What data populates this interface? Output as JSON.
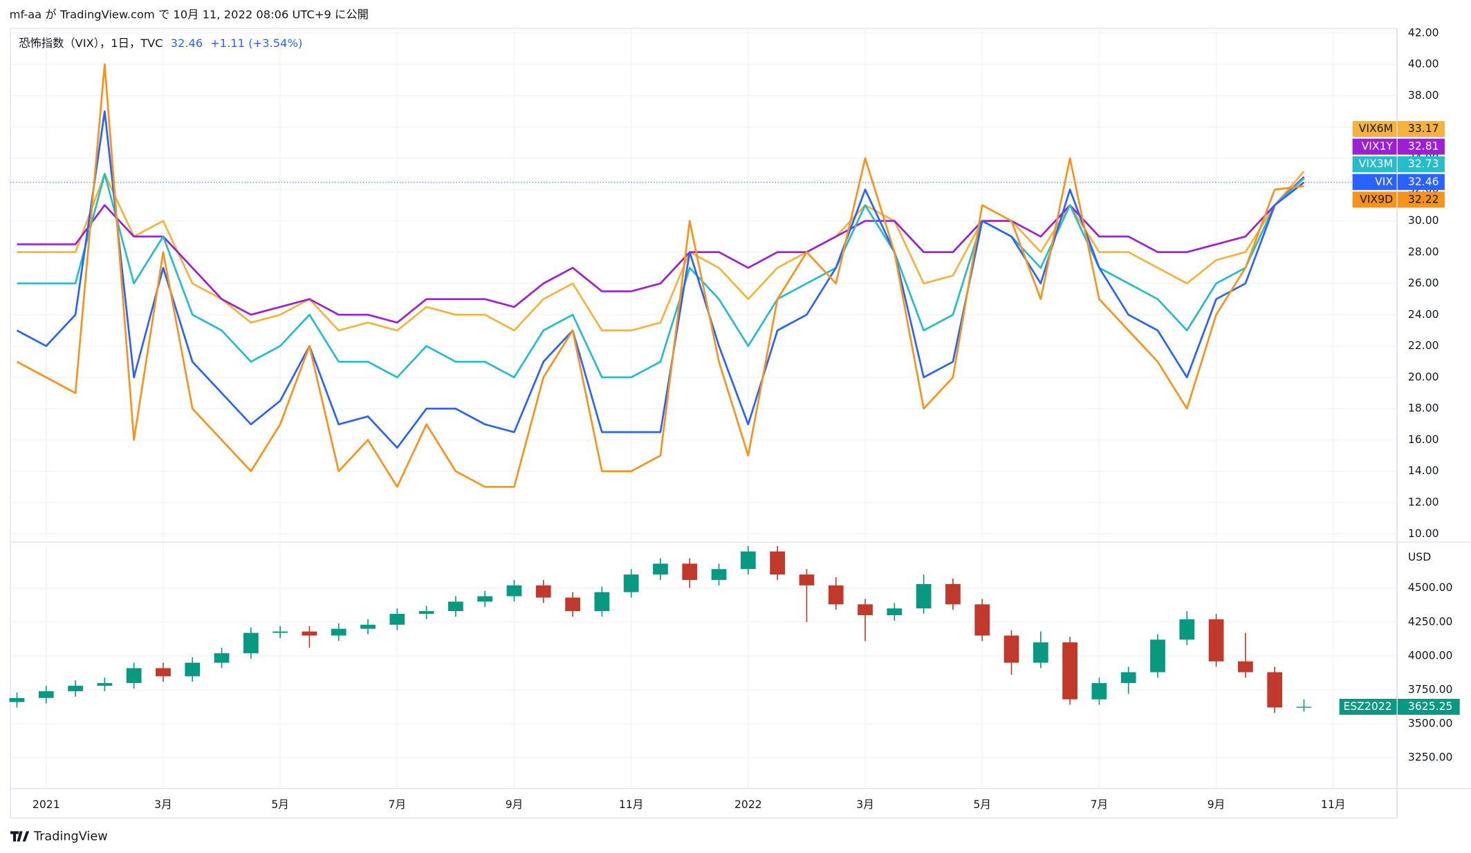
{
  "header": "mf-aa が TradingView.com で 10月 11, 2022 08:06 UTC+9 に公開",
  "footer": "TradingView",
  "chart_data": [
    {
      "type": "line",
      "title": "恐怖指数（VIX），1日，TVC",
      "change": "+1.11 (+3.54%)",
      "categories": [
        null,
        "2021",
        null,
        null,
        null,
        "3月",
        null,
        null,
        null,
        "5月",
        null,
        null,
        null,
        "7月",
        null,
        null,
        null,
        "9月",
        null,
        null,
        null,
        "11月",
        null,
        null,
        null,
        "2022",
        null,
        null,
        null,
        "3月",
        null,
        null,
        null,
        "5月",
        null,
        null,
        null,
        "7月",
        null,
        null,
        null,
        "9月",
        null,
        null,
        null,
        "11月",
        null
      ],
      "series": [
        {
          "name": "VIX6M",
          "color": "#f5b23c",
          "values": [
            28,
            28,
            28,
            33,
            29,
            30,
            26,
            25,
            23.5,
            24,
            25,
            23,
            23.5,
            23,
            24.5,
            24,
            24,
            23,
            25,
            26,
            23,
            23,
            23.5,
            28,
            27,
            25,
            27,
            28,
            29,
            31,
            30,
            26,
            26.5,
            30,
            30,
            28,
            31,
            28,
            28,
            27,
            26,
            27.5,
            28,
            31,
            33.17,
            null,
            null
          ]
        },
        {
          "name": "VIX1Y",
          "color": "#9c1fd6",
          "values": [
            28.5,
            28.5,
            28.5,
            31,
            29,
            29,
            27,
            25,
            24,
            24.5,
            25,
            24,
            24,
            23.5,
            25,
            25,
            25,
            24.5,
            26,
            27,
            25.5,
            25.5,
            26,
            28,
            28,
            27,
            28,
            28,
            29,
            30,
            30,
            28,
            28,
            30,
            30,
            29,
            31,
            29,
            29,
            28,
            28,
            28.5,
            29,
            31,
            32.81,
            null,
            null
          ]
        },
        {
          "name": "VIX3M",
          "color": "#26bcc9",
          "values": [
            26,
            26,
            26,
            33,
            26,
            29,
            24,
            23,
            21,
            22,
            24,
            21,
            21,
            20,
            22,
            21,
            21,
            20,
            23,
            24,
            20,
            20,
            21,
            27,
            25,
            22,
            25,
            26,
            27,
            31,
            28,
            23,
            24,
            30,
            29,
            27,
            31,
            27,
            26,
            25,
            23,
            26,
            27,
            31,
            32.73,
            null,
            null
          ]
        },
        {
          "name": "VIX",
          "color": "#2962ff",
          "values": [
            23,
            22,
            24,
            37,
            20,
            27,
            21,
            19,
            17,
            18.5,
            22,
            17,
            17.5,
            15.5,
            18,
            18,
            17,
            16.5,
            21,
            23,
            16.5,
            16.5,
            16.5,
            28,
            22,
            17,
            23,
            24,
            27,
            32,
            28,
            20,
            21,
            30,
            29,
            26,
            32,
            27,
            24,
            23,
            20,
            25,
            26,
            31,
            32.46,
            null,
            null
          ]
        },
        {
          "name": "VIX9D",
          "color": "#f7931a",
          "values": [
            21,
            20,
            19,
            40,
            16,
            28,
            18,
            16,
            14,
            17,
            22,
            14,
            16,
            13,
            17,
            14,
            13,
            13,
            20,
            23,
            14,
            14,
            15,
            30,
            21,
            15,
            25,
            28,
            26,
            34,
            28,
            18,
            20,
            31,
            30,
            25,
            34,
            25,
            23,
            21,
            18,
            24,
            27,
            32,
            32.22,
            null,
            null
          ]
        }
      ],
      "ylim": [
        9.5,
        42.3
      ],
      "yticks": [
        {
          "value": 10,
          "label": "10.00"
        },
        {
          "value": 12,
          "label": "12.00"
        },
        {
          "value": 14,
          "label": "14.00"
        },
        {
          "value": 16,
          "label": "16.00"
        },
        {
          "value": 18,
          "label": "18.00"
        },
        {
          "value": 20,
          "label": "20.00"
        },
        {
          "value": 22,
          "label": "22.00"
        },
        {
          "value": 24,
          "label": "24.00"
        },
        {
          "value": 26,
          "label": "26.00"
        },
        {
          "value": 28,
          "label": "28.00"
        },
        {
          "value": 30,
          "label": "30.00"
        },
        {
          "value": 32,
          "label": "32.00"
        },
        {
          "value": 34,
          "label": "34.00"
        },
        {
          "value": 36,
          "label": "36.00"
        },
        {
          "value": 38,
          "label": "38.00"
        },
        {
          "value": 40,
          "label": "40.00"
        },
        {
          "value": 42,
          "label": "42.00"
        }
      ],
      "grid": true
    },
    {
      "type": "candlestick",
      "name": "ESZ2022",
      "unit": "USD",
      "up_color": "#089981",
      "down_color": "#c0392b",
      "open": [
        3660,
        3690,
        3740,
        3780,
        3800,
        3910,
        3850,
        3950,
        4020,
        4170,
        4180,
        4150,
        4200,
        4230,
        4310,
        4330,
        4400,
        4440,
        4520,
        4430,
        4330,
        4470,
        4600,
        4680,
        4560,
        4640,
        4770,
        4600,
        4520,
        4380,
        4300,
        4350,
        4530,
        4380,
        4150,
        3950,
        4100,
        3680,
        3800,
        3880,
        4120,
        4270,
        3960,
        3880,
        3620,
        null,
        null
      ],
      "high": [
        3730,
        3780,
        3820,
        3840,
        3950,
        3950,
        3990,
        4060,
        4210,
        4220,
        4220,
        4240,
        4270,
        4350,
        4370,
        4440,
        4480,
        4560,
        4560,
        4470,
        4510,
        4640,
        4720,
        4720,
        4680,
        4810,
        4810,
        4640,
        4580,
        4420,
        4390,
        4600,
        4570,
        4420,
        4190,
        4180,
        4140,
        3840,
        3920,
        4160,
        4330,
        4310,
        4170,
        3920,
        3680,
        null,
        null
      ],
      "low": [
        3620,
        3650,
        3700,
        3740,
        3760,
        3810,
        3810,
        3910,
        3980,
        4130,
        4060,
        4110,
        4160,
        4190,
        4270,
        4290,
        4360,
        4400,
        4390,
        4290,
        4290,
        4430,
        4560,
        4500,
        4520,
        4600,
        4560,
        4250,
        4340,
        4110,
        4260,
        4310,
        4340,
        4110,
        3860,
        3910,
        3640,
        3640,
        3720,
        3840,
        4080,
        3920,
        3840,
        3580,
        3590,
        null,
        null
      ],
      "close": [
        3690,
        3740,
        3780,
        3800,
        3910,
        3850,
        3950,
        4020,
        4170,
        4180,
        4150,
        4200,
        4230,
        4310,
        4330,
        4400,
        4440,
        4520,
        4430,
        4330,
        4470,
        4600,
        4680,
        4560,
        4640,
        4770,
        4600,
        4520,
        4380,
        4300,
        4350,
        4530,
        4380,
        4150,
        3950,
        4100,
        3680,
        3800,
        3880,
        4120,
        4270,
        3960,
        3880,
        3620,
        3625.25,
        null,
        null
      ],
      "ylim": [
        3027,
        4842
      ],
      "yticks": [
        {
          "value": 3250,
          "label": "3250.00"
        },
        {
          "value": 3500,
          "label": "3500.00"
        },
        {
          "value": 3750,
          "label": "3750.00"
        },
        {
          "value": 4000,
          "label": "4000.00"
        },
        {
          "value": 4250,
          "label": "4250.00"
        },
        {
          "value": 4500,
          "label": "4500.00"
        }
      ],
      "grid": true
    }
  ]
}
